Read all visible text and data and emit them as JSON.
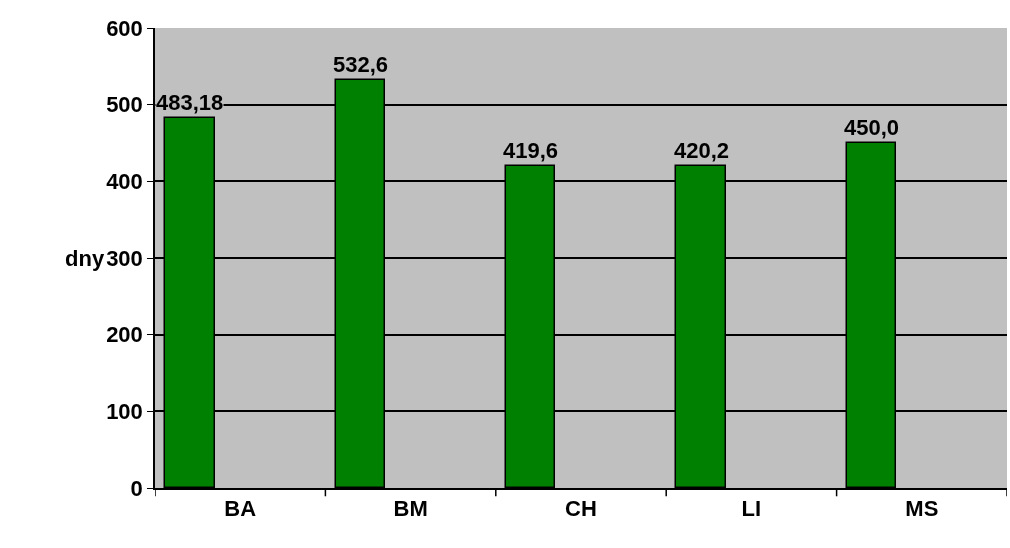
{
  "chart_data": {
    "type": "bar",
    "ylabel": "dny",
    "categories": [
      "BA",
      "BM",
      "CH",
      "LI",
      "MS"
    ],
    "values": [
      483.18,
      532.6,
      419.6,
      420.2,
      450.0
    ],
    "value_labels": [
      "483,18",
      "532,6",
      "419,6",
      "420,2",
      "450,0"
    ],
    "color": "#008000",
    "ylim": [
      0,
      600
    ],
    "yticks": [
      0,
      100,
      200,
      300,
      400,
      500,
      600
    ],
    "grid": "y",
    "legend": false
  }
}
